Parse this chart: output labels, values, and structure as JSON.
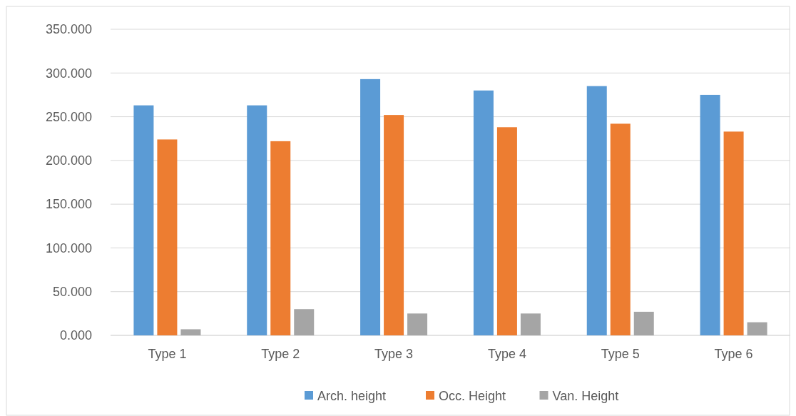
{
  "chart_data": {
    "type": "bar",
    "categories": [
      "Type 1",
      "Type 2",
      "Type 3",
      "Type 4",
      "Type 5",
      "Type 6"
    ],
    "series": [
      {
        "name": "Arch. height",
        "color": "#5b9bd5",
        "values": [
          263,
          263,
          293,
          280,
          285,
          275
        ]
      },
      {
        "name": "Occ. Height",
        "color": "#ed7d31",
        "values": [
          224,
          222,
          252,
          238,
          242,
          233
        ]
      },
      {
        "name": "Van. Height",
        "color": "#a5a5a5",
        "values": [
          7,
          30,
          25,
          25,
          27,
          15
        ]
      }
    ],
    "ylim": [
      0,
      350
    ],
    "yticks": [
      {
        "value": 0,
        "label": "0.000"
      },
      {
        "value": 50,
        "label": "50.000"
      },
      {
        "value": 100,
        "label": "100.000"
      },
      {
        "value": 150,
        "label": "150.000"
      },
      {
        "value": 200,
        "label": "200.000"
      },
      {
        "value": 250,
        "label": "250.000"
      },
      {
        "value": 300,
        "label": "300.000"
      },
      {
        "value": 350,
        "label": "350.000"
      }
    ],
    "grid": "y",
    "legend": "bottom"
  }
}
